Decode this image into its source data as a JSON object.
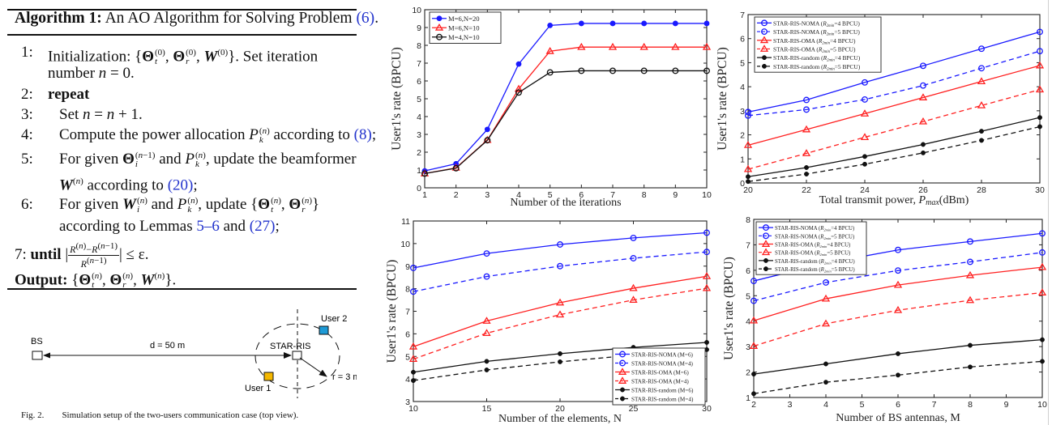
{
  "algorithm": {
    "label": "Algorithm 1:",
    "title": "An AO Algorithm for Solving Problem",
    "title_ref": "(6)",
    "title_end": ".",
    "steps": [
      {
        "num": "1:",
        "text": "Initialization: {Θt(0), Θr(0), W(0)}. Set iteration",
        "cont": "number n = 0."
      },
      {
        "num": "2:",
        "keyword": "repeat"
      },
      {
        "num": "3:",
        "text": "Set n = n + 1."
      },
      {
        "num": "4:",
        "text_a": "Compute the power allocation",
        "text_b": "according to",
        "ref": "(8)",
        "end": ";"
      },
      {
        "num": "5:",
        "text_a": "For given",
        "text_b": "and",
        "text_c": ", update the beamformer",
        "cont_b": "according to",
        "ref": "(20)",
        "end": ";"
      },
      {
        "num": "6:",
        "text_a": "For given",
        "text_b": "and",
        "text_c": ", update",
        "cont_a": "according to Lemmas",
        "ref1": "5–6",
        "cont_b": "and",
        "ref2": "(27)",
        "end": ";"
      },
      {
        "num": "7:",
        "keyword": "until",
        "cond_end": "≤ ε."
      },
      {
        "keyword": "Output:"
      }
    ]
  },
  "figure2": {
    "bs_label": "BS",
    "distance_label": "d = 50 m",
    "ris_label": "STAR-RIS",
    "user1_label": "User 1",
    "user2_label": "User 2",
    "radius_label": "r = 3 m",
    "caption_label": "Fig. 2.",
    "caption_text": "Simulation setup of the two-users communication case (top view).",
    "colors": {
      "user1": "#f5b800",
      "user2": "#1e9ad6"
    }
  },
  "chart_data": [
    {
      "id": "iterations",
      "type": "line",
      "title": "",
      "xlabel": "Number of the iterations",
      "ylabel": "User1's rate (BPCU)",
      "xlim": [
        1,
        10
      ],
      "ylim": [
        0,
        10
      ],
      "xticks": [
        1,
        2,
        3,
        4,
        5,
        6,
        7,
        8,
        9,
        10
      ],
      "yticks": [
        0,
        1,
        2,
        3,
        4,
        5,
        6,
        7,
        8,
        9,
        10
      ],
      "legend": "top-left",
      "x": [
        1,
        2,
        3,
        4,
        5,
        6,
        7,
        8,
        9,
        10
      ],
      "series": [
        {
          "name": "M=6,N=20",
          "color": "#1a1aff",
          "marker": "star",
          "dash": false,
          "values": [
            0.95,
            1.35,
            3.28,
            6.95,
            9.12,
            9.23,
            9.23,
            9.23,
            9.23,
            9.23
          ]
        },
        {
          "name": "M=6,N=10",
          "color": "#ff2020",
          "marker": "triangle",
          "dash": false,
          "values": [
            0.8,
            1.12,
            2.68,
            5.55,
            7.67,
            7.9,
            7.9,
            7.9,
            7.9,
            7.9
          ]
        },
        {
          "name": "M=4,N=10",
          "color": "#111111",
          "marker": "circle",
          "dash": false,
          "values": [
            0.8,
            1.1,
            2.67,
            5.35,
            6.48,
            6.57,
            6.57,
            6.57,
            6.57,
            6.57
          ]
        }
      ]
    },
    {
      "id": "power",
      "type": "line",
      "title": "",
      "xlabel": "Total transmit power, P_max(dBm)",
      "xlabel_main": "Total transmit power, ",
      "xlabel_var": "P",
      "xlabel_sub": "max",
      "xlabel_unit": "(dBm)",
      "ylabel": "User1's rate (BPCU)",
      "xlim": [
        20,
        30
      ],
      "ylim": [
        0,
        7
      ],
      "xticks": [
        20,
        22,
        24,
        26,
        28,
        30
      ],
      "yticks": [
        0,
        1,
        2,
        3,
        4,
        5,
        6,
        7
      ],
      "legend": "top-left",
      "x": [
        20,
        22,
        24,
        26,
        28,
        30
      ],
      "series": [
        {
          "name": "STAR-RIS-NOMA (R2min=4 BPCU)",
          "color": "#1a1aff",
          "marker": "circle",
          "dash": false,
          "values": [
            2.95,
            3.45,
            4.18,
            4.87,
            5.58,
            6.28
          ]
        },
        {
          "name": "STAR-RIS-NOMA (R2min=5 BPCU)",
          "color": "#1a1aff",
          "marker": "circle",
          "dash": true,
          "values": [
            2.8,
            3.05,
            3.47,
            4.05,
            4.77,
            5.48
          ]
        },
        {
          "name": "STAR-RIS-OMA (R2min=4 BPCU)",
          "color": "#ff2020",
          "marker": "triangle",
          "dash": false,
          "values": [
            1.57,
            2.22,
            2.88,
            3.55,
            4.22,
            4.88
          ]
        },
        {
          "name": "STAR-RIS-OMA (R2min=5 BPCU)",
          "color": "#ff2020",
          "marker": "triangle",
          "dash": true,
          "values": [
            0.57,
            1.23,
            1.9,
            2.55,
            3.22,
            3.88
          ]
        },
        {
          "name": "STAR-RIS-random (R2min=4 BPCU)",
          "color": "#111111",
          "marker": "dot",
          "dash": false,
          "values": [
            0.26,
            0.64,
            1.1,
            1.6,
            2.15,
            2.72
          ]
        },
        {
          "name": "STAR-RIS-random (R2min=5 BPCU)",
          "color": "#111111",
          "marker": "dot",
          "dash": true,
          "values": [
            0.06,
            0.37,
            0.78,
            1.25,
            1.77,
            2.34
          ]
        }
      ]
    },
    {
      "id": "elements",
      "type": "line",
      "title": "",
      "xlabel": "Number of the elements, N",
      "ylabel": "User1's rate (BPCU)",
      "xlim": [
        10,
        30
      ],
      "ylim": [
        3,
        11
      ],
      "xticks": [
        10,
        15,
        20,
        25,
        30
      ],
      "yticks": [
        3,
        4,
        5,
        6,
        7,
        8,
        9,
        10,
        11
      ],
      "legend": "bottom-right",
      "x": [
        10,
        15,
        20,
        25,
        30
      ],
      "series": [
        {
          "name": "STAR-RIS-NOMA (M=6)",
          "color": "#1a1aff",
          "marker": "circle",
          "dash": false,
          "values": [
            8.92,
            9.56,
            9.96,
            10.25,
            10.48
          ]
        },
        {
          "name": "STAR-RIS-NOMA (M=4)",
          "color": "#1a1aff",
          "marker": "circle",
          "dash": true,
          "values": [
            7.87,
            8.54,
            9.0,
            9.35,
            9.63
          ]
        },
        {
          "name": "STAR-RIS-OMA (M=6)",
          "color": "#ff2020",
          "marker": "triangle",
          "dash": false,
          "values": [
            5.43,
            6.57,
            7.38,
            8.02,
            8.55
          ]
        },
        {
          "name": "STAR-RIS-OMA (M=4)",
          "color": "#ff2020",
          "marker": "triangle",
          "dash": true,
          "values": [
            4.88,
            6.03,
            6.85,
            7.5,
            8.02
          ]
        },
        {
          "name": "STAR-RIS-random (M=6)",
          "color": "#111111",
          "marker": "dot",
          "dash": false,
          "values": [
            4.3,
            4.78,
            5.12,
            5.4,
            5.62
          ]
        },
        {
          "name": "STAR-RIS-random (M=4)",
          "color": "#111111",
          "marker": "dot",
          "dash": true,
          "values": [
            3.93,
            4.4,
            4.76,
            5.06,
            5.3
          ]
        }
      ]
    },
    {
      "id": "antennas",
      "type": "line",
      "title": "",
      "xlabel": "Number of BS antennas, M",
      "ylabel": "User1's rate (BPCU)",
      "xlim": [
        2,
        10
      ],
      "ylim": [
        1,
        8
      ],
      "xticks": [
        2,
        3,
        4,
        5,
        6,
        7,
        8,
        9,
        10
      ],
      "yticks": [
        1,
        2,
        3,
        4,
        5,
        6,
        7,
        8
      ],
      "legend": "top-left",
      "x": [
        2,
        4,
        6,
        8,
        10
      ],
      "series": [
        {
          "name": "STAR-RIS-NOMA (R2min=4 BPCU)",
          "color": "#1a1aff",
          "marker": "circle",
          "dash": false,
          "values": [
            5.58,
            6.28,
            6.8,
            7.13,
            7.45
          ]
        },
        {
          "name": "STAR-RIS-NOMA (R2min=5 BPCU)",
          "color": "#1a1aff",
          "marker": "circle",
          "dash": true,
          "values": [
            4.8,
            5.52,
            5.99,
            6.33,
            6.7
          ]
        },
        {
          "name": "STAR-RIS-OMA (R2min=4 BPCU)",
          "color": "#ff2020",
          "marker": "triangle",
          "dash": false,
          "values": [
            4.02,
            4.88,
            5.42,
            5.8,
            6.12
          ]
        },
        {
          "name": "STAR-RIS-OMA (R2min=5 BPCU)",
          "color": "#ff2020",
          "marker": "triangle",
          "dash": true,
          "values": [
            3.02,
            3.9,
            4.43,
            4.82,
            5.12
          ]
        },
        {
          "name": "STAR-RIS-random (R2min=4 BPCU)",
          "color": "#111111",
          "marker": "dot",
          "dash": false,
          "values": [
            1.92,
            2.32,
            2.72,
            3.05,
            3.27
          ]
        },
        {
          "name": "STAR-RIS-random (R2min=5 BPCU)",
          "color": "#111111",
          "marker": "dot",
          "dash": true,
          "values": [
            1.15,
            1.6,
            1.88,
            2.2,
            2.42
          ]
        }
      ]
    }
  ]
}
